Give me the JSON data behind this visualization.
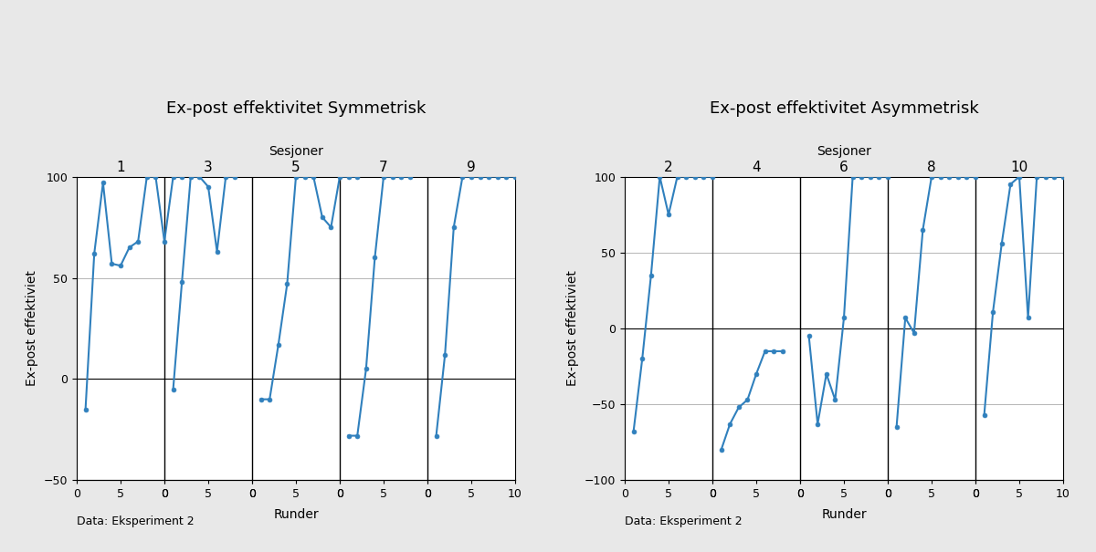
{
  "title_sym": "Ex-post effektivitet Symmetrisk",
  "title_asym": "Ex-post effektivitet Asymmetrisk",
  "ylabel": "Ex-post effektiviet",
  "xlabel": "Runder",
  "top_xlabel": "Sesjoner",
  "data_label": "Data: Eksperiment 2",
  "line_color": "#3080bd",
  "bg_color": "#e8e8e8",
  "plot_bg_color": "#ffffff",
  "sessions_sym": [
    1,
    3,
    5,
    7,
    9
  ],
  "sessions_asym": [
    2,
    4,
    6,
    8,
    10
  ],
  "ylim_sym": [
    -50,
    100
  ],
  "ylim_asym": [
    -100,
    100
  ],
  "yticks_sym": [
    -50,
    0,
    50,
    100
  ],
  "yticks_asym": [
    -100,
    -50,
    0,
    50,
    100
  ],
  "sym_data": [
    [
      -15,
      62,
      97,
      57,
      56,
      65,
      68,
      100,
      100,
      68,
      100,
      100
    ],
    [
      -5,
      48,
      100,
      100,
      95,
      63,
      100,
      100
    ],
    [
      -10,
      -10,
      17,
      47,
      100,
      100,
      100,
      80,
      75,
      100,
      100,
      100
    ],
    [
      -28,
      -28,
      5,
      60,
      100,
      100,
      100,
      100
    ],
    [
      -28,
      12,
      75,
      100,
      100,
      100,
      100,
      100,
      100,
      100,
      100,
      100
    ]
  ],
  "asym_data": [
    [
      -68,
      -20,
      35,
      100,
      75,
      100,
      100,
      100,
      100,
      100
    ],
    [
      -80,
      -63,
      -52,
      -47,
      -30,
      -15,
      -15,
      -15
    ],
    [
      -5,
      -63,
      -30,
      -47,
      7,
      100,
      100,
      100,
      100,
      100
    ],
    [
      -65,
      7,
      -3,
      65,
      100,
      100,
      100,
      100,
      100,
      100
    ],
    [
      -57,
      11,
      56,
      95,
      100,
      7,
      100,
      100,
      100,
      100
    ]
  ]
}
